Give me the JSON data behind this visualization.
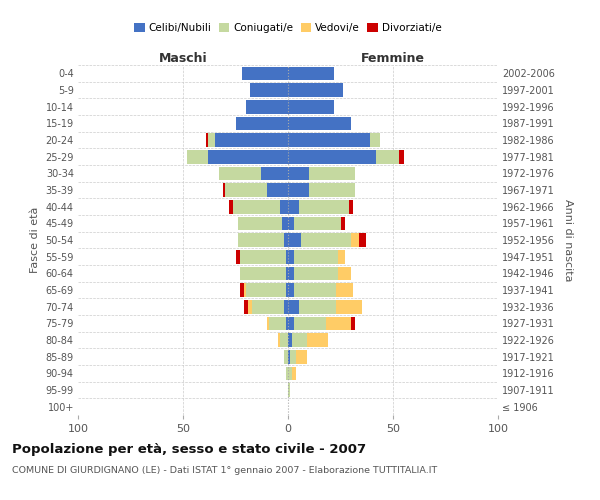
{
  "age_groups": [
    "100+",
    "95-99",
    "90-94",
    "85-89",
    "80-84",
    "75-79",
    "70-74",
    "65-69",
    "60-64",
    "55-59",
    "50-54",
    "45-49",
    "40-44",
    "35-39",
    "30-34",
    "25-29",
    "20-24",
    "15-19",
    "10-14",
    "5-9",
    "0-4"
  ],
  "birth_years": [
    "≤ 1906",
    "1907-1911",
    "1912-1916",
    "1917-1921",
    "1922-1926",
    "1927-1931",
    "1932-1936",
    "1937-1941",
    "1942-1946",
    "1947-1951",
    "1952-1956",
    "1957-1961",
    "1962-1966",
    "1967-1971",
    "1972-1976",
    "1977-1981",
    "1982-1986",
    "1987-1991",
    "1992-1996",
    "1997-2001",
    "2002-2006"
  ],
  "maschi": {
    "celibe": [
      0,
      0,
      0,
      0,
      0,
      1,
      2,
      1,
      1,
      1,
      2,
      3,
      4,
      10,
      13,
      38,
      35,
      25,
      20,
      18,
      22
    ],
    "coniugato": [
      0,
      0,
      1,
      2,
      4,
      8,
      15,
      19,
      22,
      22,
      22,
      21,
      22,
      20,
      20,
      10,
      3,
      0,
      0,
      0,
      0
    ],
    "vedovo": [
      0,
      0,
      0,
      0,
      1,
      1,
      2,
      1,
      0,
      0,
      0,
      0,
      0,
      0,
      0,
      0,
      0,
      0,
      0,
      0,
      0
    ],
    "divorziato": [
      0,
      0,
      0,
      0,
      0,
      0,
      2,
      2,
      0,
      2,
      0,
      0,
      2,
      1,
      0,
      0,
      1,
      0,
      0,
      0,
      0
    ]
  },
  "femmine": {
    "nubile": [
      0,
      0,
      0,
      1,
      2,
      3,
      5,
      3,
      3,
      3,
      6,
      3,
      5,
      10,
      10,
      42,
      39,
      30,
      22,
      26,
      22
    ],
    "coniugata": [
      0,
      1,
      2,
      3,
      7,
      15,
      18,
      20,
      21,
      21,
      24,
      22,
      24,
      22,
      22,
      11,
      5,
      0,
      0,
      0,
      0
    ],
    "vedova": [
      0,
      0,
      2,
      5,
      10,
      12,
      12,
      8,
      6,
      3,
      4,
      0,
      0,
      0,
      0,
      0,
      0,
      0,
      0,
      0,
      0
    ],
    "divorziata": [
      0,
      0,
      0,
      0,
      0,
      2,
      0,
      0,
      0,
      0,
      3,
      2,
      2,
      0,
      0,
      2,
      0,
      0,
      0,
      0,
      0
    ]
  },
  "color_celibe": "#4472C4",
  "color_coniugato": "#C5D9A0",
  "color_vedovo": "#FFCC66",
  "color_divorziato": "#CC0000",
  "xlim": 100,
  "title": "Popolazione per età, sesso e stato civile - 2007",
  "subtitle": "COMUNE DI GIURDIGNANO (LE) - Dati ISTAT 1° gennaio 2007 - Elaborazione TUTTITALIA.IT",
  "ylabel_left": "Fasce di età",
  "ylabel_right": "Anni di nascita",
  "xlabel_left": "Maschi",
  "xlabel_right": "Femmine",
  "bg_color": "#FFFFFF",
  "grid_color": "#CCCCCC",
  "legend_labels": [
    "Celibi/Nubili",
    "Coniugati/e",
    "Vedovi/e",
    "Divorziati/e"
  ]
}
